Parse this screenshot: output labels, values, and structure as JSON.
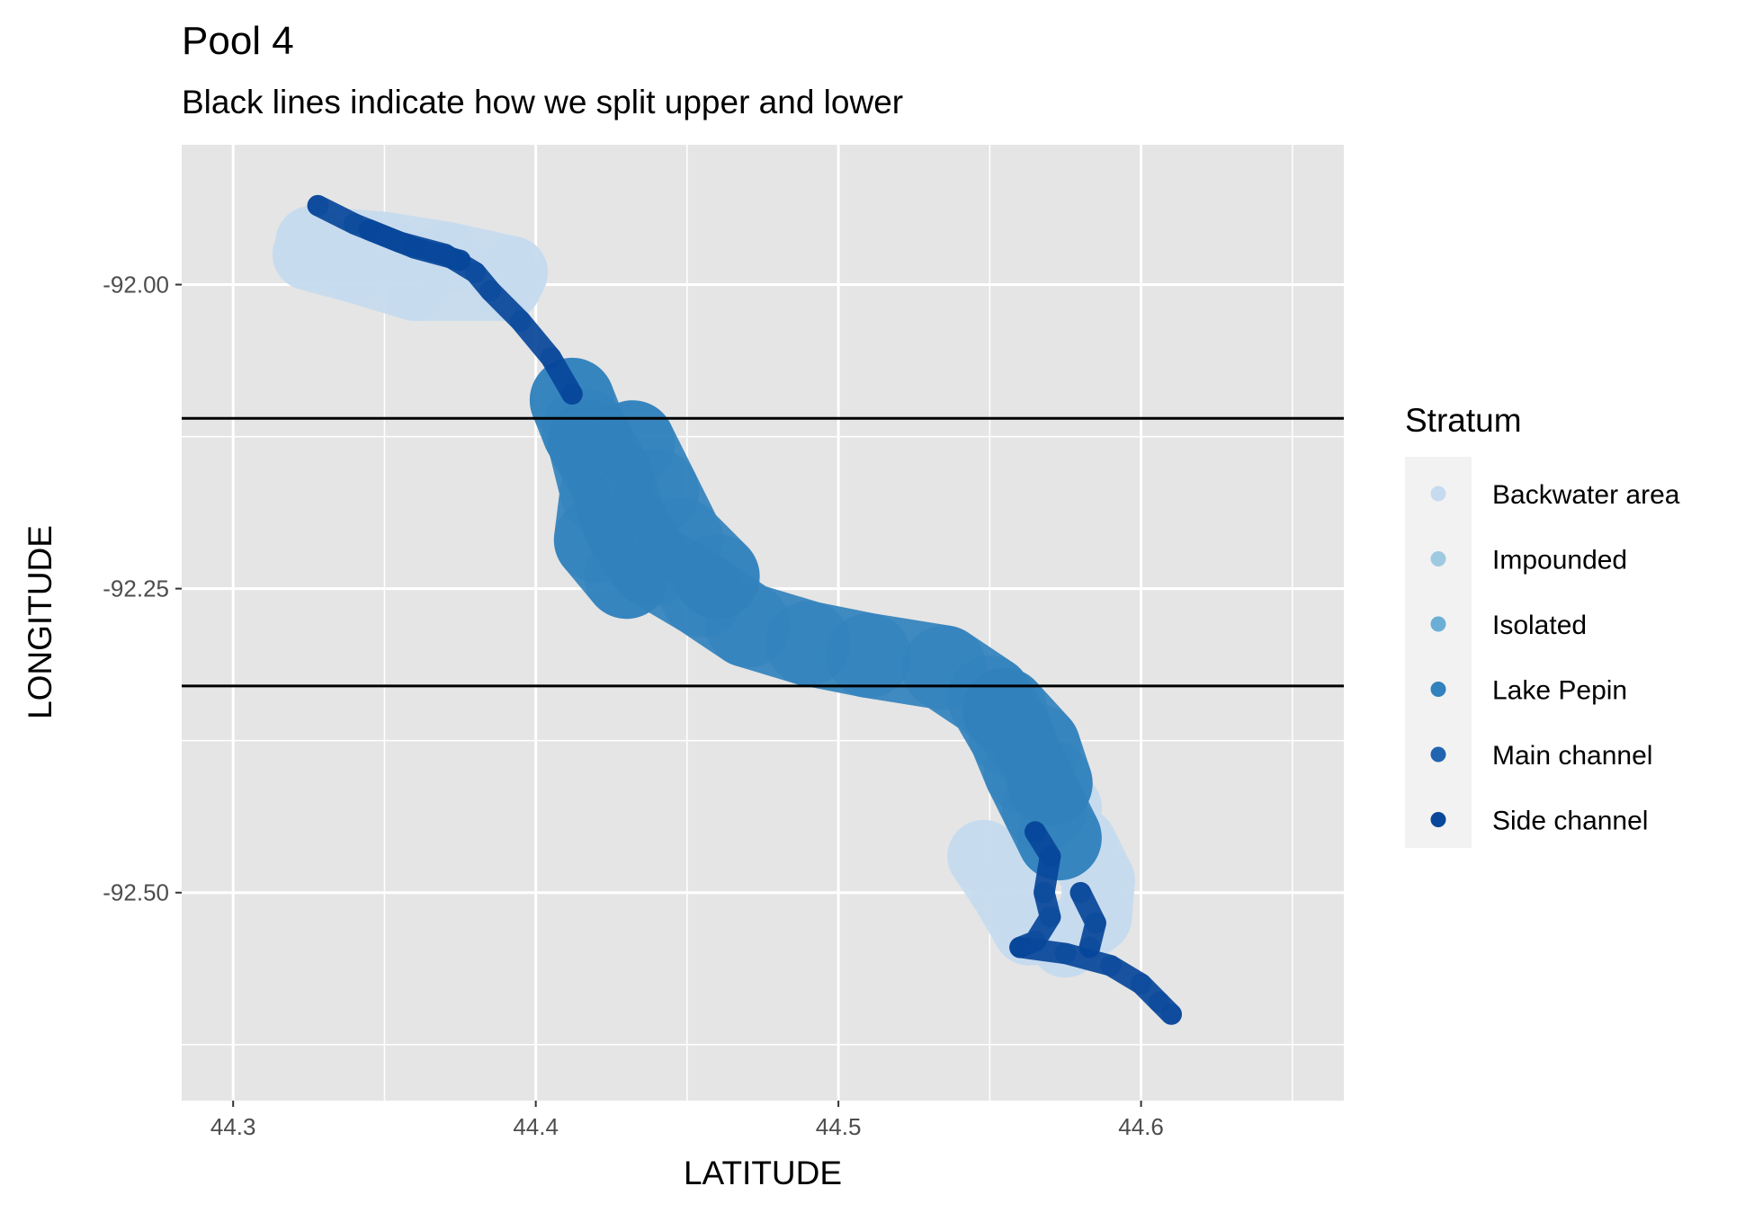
{
  "chart_data": {
    "type": "scatter",
    "title": "Pool 4",
    "subtitle": "Black lines indicate how we split upper and lower",
    "xlabel": "LATITUDE",
    "ylabel": "LONGITUDE",
    "xlim": [
      44.283,
      44.667
    ],
    "ylim": [
      -92.671,
      -91.885
    ],
    "x_ticks": [
      44.3,
      44.4,
      44.5,
      44.6
    ],
    "x_tick_labels": [
      "44.3",
      "44.4",
      "44.5",
      "44.6"
    ],
    "y_ticks": [
      -92.0,
      -92.25,
      -92.5
    ],
    "y_tick_labels": [
      "-92.00",
      "-92.25",
      "-92.50"
    ],
    "grid": true,
    "hlines": [
      -92.11,
      -92.33
    ],
    "hline_color": "#000000",
    "legend": {
      "title": "Stratum",
      "position": "right",
      "entries": [
        {
          "label": "Backwater area",
          "color": "#c6dbef"
        },
        {
          "label": "Impounded",
          "color": "#9ecae1"
        },
        {
          "label": "Isolated",
          "color": "#6baed6"
        },
        {
          "label": "Lake Pepin",
          "color": "#3182bd"
        },
        {
          "label": "Main channel",
          "color": "#2164b0"
        },
        {
          "label": "Side channel",
          "color": "#08479a"
        }
      ]
    },
    "series": [
      {
        "name": "Backwater area",
        "color": "#c6dbef",
        "width": 0.024,
        "path": [
          [
            44.326,
            -91.965
          ],
          [
            44.35,
            -91.97
          ],
          [
            44.37,
            -91.978
          ],
          [
            44.392,
            -91.99
          ],
          [
            44.39,
            -92.0
          ],
          [
            44.36,
            -92.0
          ],
          [
            44.34,
            -91.985
          ],
          [
            44.325,
            -91.975
          ]
        ],
        "extra_paths": [
          [
            [
              44.555,
              -92.36
            ],
            [
              44.565,
              -92.4
            ],
            [
              44.575,
              -92.43
            ],
            [
              44.573,
              -92.46
            ]
          ],
          [
            [
              44.58,
              -92.46
            ],
            [
              44.586,
              -92.49
            ],
            [
              44.585,
              -92.52
            ],
            [
              44.575,
              -92.54
            ]
          ],
          [
            [
              44.548,
              -92.47
            ],
            [
              44.556,
              -92.5
            ],
            [
              44.563,
              -92.53
            ]
          ]
        ]
      },
      {
        "name": "Lake Pepin",
        "color": "#3182bd",
        "width": 0.028,
        "path": [
          [
            44.412,
            -92.095
          ],
          [
            44.416,
            -92.12
          ],
          [
            44.425,
            -92.16
          ],
          [
            44.43,
            -92.2
          ],
          [
            44.438,
            -92.23
          ],
          [
            44.455,
            -92.255
          ],
          [
            44.47,
            -92.28
          ],
          [
            44.49,
            -92.295
          ],
          [
            44.51,
            -92.305
          ],
          [
            44.535,
            -92.315
          ],
          [
            44.55,
            -92.34
          ],
          [
            44.557,
            -92.37
          ],
          [
            44.562,
            -92.4
          ],
          [
            44.568,
            -92.43
          ],
          [
            44.573,
            -92.455
          ]
        ],
        "extra_paths": [
          [
            [
              44.418,
              -92.13
            ],
            [
              44.422,
              -92.17
            ],
            [
              44.42,
              -92.21
            ],
            [
              44.43,
              -92.24
            ]
          ],
          [
            [
              44.432,
              -92.13
            ],
            [
              44.44,
              -92.17
            ],
            [
              44.448,
              -92.21
            ],
            [
              44.46,
              -92.24
            ]
          ],
          [
            [
              44.555,
              -92.35
            ],
            [
              44.566,
              -92.38
            ],
            [
              44.57,
              -92.41
            ]
          ]
        ]
      },
      {
        "name": "Side channel",
        "color": "#08479a",
        "width": 0.007,
        "path": [
          [
            44.328,
            -91.935
          ],
          [
            44.34,
            -91.95
          ],
          [
            44.355,
            -91.965
          ],
          [
            44.37,
            -91.975
          ],
          [
            44.38,
            -91.99
          ],
          [
            44.385,
            -92.005
          ],
          [
            44.395,
            -92.03
          ],
          [
            44.405,
            -92.06
          ],
          [
            44.412,
            -92.09
          ]
        ],
        "extra_paths": [
          [
            [
              44.565,
              -92.45
            ],
            [
              44.57,
              -92.47
            ],
            [
              44.568,
              -92.5
            ],
            [
              44.57,
              -92.52
            ],
            [
              44.565,
              -92.54
            ],
            [
              44.56,
              -92.545
            ]
          ],
          [
            [
              44.56,
              -92.545
            ],
            [
              44.575,
              -92.55
            ],
            [
              44.59,
              -92.56
            ],
            [
              44.6,
              -92.575
            ],
            [
              44.606,
              -92.59
            ],
            [
              44.61,
              -92.6
            ]
          ],
          [
            [
              44.58,
              -92.5
            ],
            [
              44.585,
              -92.525
            ],
            [
              44.583,
              -92.545
            ]
          ],
          [
            [
              44.345,
              -91.955
            ],
            [
              44.36,
              -91.97
            ],
            [
              44.375,
              -91.98
            ]
          ]
        ]
      }
    ]
  }
}
